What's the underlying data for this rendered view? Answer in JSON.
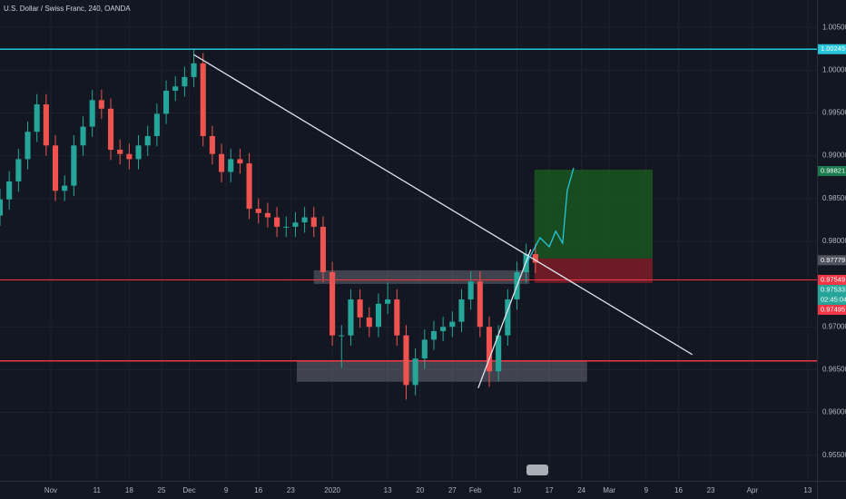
{
  "chart_data": {
    "type": "candlestick",
    "title": "U.S. Dollar / Swiss Franc, 240, OANDA",
    "up_color": "#26a69a",
    "down_color": "#ef5350",
    "x": [
      -11,
      -9,
      -7,
      -5,
      -3,
      -1,
      1,
      3,
      5,
      7,
      9,
      11,
      13,
      15,
      17,
      19,
      21,
      23,
      25,
      27,
      29,
      31,
      33,
      35,
      37,
      39,
      41,
      43,
      45,
      47,
      49,
      51,
      53,
      55,
      57,
      59,
      61,
      63,
      65,
      67,
      69,
      71,
      73,
      75,
      77,
      79,
      81,
      83,
      85,
      87,
      89,
      91,
      93,
      95,
      97,
      99,
      101,
      103,
      105
    ],
    "open": [
      0.983,
      0.9849,
      0.987,
      0.9896,
      0.9928,
      0.996,
      0.9912,
      0.9859,
      0.9865,
      0.9912,
      0.9934,
      0.9965,
      0.9955,
      0.9907,
      0.9902,
      0.9896,
      0.9912,
      0.9923,
      0.9949,
      0.9976,
      0.9981,
      0.9992,
      1.0008,
      0.9923,
      0.9902,
      0.9881,
      0.9896,
      0.9891,
      0.9838,
      0.9833,
      0.9828,
      0.9817,
      0.9817,
      0.9822,
      0.9828,
      0.9817,
      0.9764,
      0.969,
      0.969,
      0.9732,
      0.9711,
      0.97,
      0.9727,
      0.9732,
      0.969,
      0.9632,
      0.9663,
      0.9685,
      0.9695,
      0.97,
      0.9706,
      0.9732,
      0.9753,
      0.97,
      0.9648,
      0.969,
      0.9732,
      0.9764,
      0.9785
    ],
    "high": [
      0.9861,
      0.9882,
      0.9908,
      0.994,
      0.9972,
      0.9972,
      0.9924,
      0.9877,
      0.9924,
      0.9946,
      0.9977,
      0.9977,
      0.9967,
      0.9919,
      0.9914,
      0.9924,
      0.9935,
      0.9961,
      0.9988,
      0.9993,
      1.0004,
      1.0024,
      1.002,
      0.9935,
      0.9914,
      0.9908,
      0.9908,
      0.9903,
      0.985,
      0.9845,
      0.984,
      0.9829,
      0.9834,
      0.984,
      0.984,
      0.9829,
      0.9776,
      0.9702,
      0.9744,
      0.9744,
      0.9723,
      0.9739,
      0.9752,
      0.9744,
      0.9702,
      0.9675,
      0.9697,
      0.9707,
      0.9712,
      0.9718,
      0.9744,
      0.9765,
      0.9765,
      0.9712,
      0.9702,
      0.9744,
      0.9776,
      0.9797,
      0.9797
    ],
    "low": [
      0.9818,
      0.9837,
      0.9858,
      0.9884,
      0.9916,
      0.99,
      0.9847,
      0.9847,
      0.9853,
      0.99,
      0.9922,
      0.9943,
      0.9895,
      0.989,
      0.9884,
      0.9884,
      0.99,
      0.9911,
      0.9937,
      0.9964,
      0.9969,
      0.998,
      0.9911,
      0.989,
      0.9869,
      0.9869,
      0.9879,
      0.9826,
      0.9821,
      0.9816,
      0.9805,
      0.9805,
      0.9805,
      0.981,
      0.9805,
      0.9752,
      0.9678,
      0.9652,
      0.9678,
      0.9699,
      0.9688,
      0.9688,
      0.9715,
      0.9678,
      0.9615,
      0.962,
      0.9651,
      0.9673,
      0.9683,
      0.9688,
      0.9694,
      0.972,
      0.9688,
      0.963,
      0.9636,
      0.9678,
      0.972,
      0.9752,
      0.9763
    ],
    "close": [
      0.9849,
      0.987,
      0.9896,
      0.9928,
      0.996,
      0.9912,
      0.9859,
      0.9865,
      0.9912,
      0.9934,
      0.9965,
      0.9955,
      0.9907,
      0.9902,
      0.9896,
      0.9912,
      0.9923,
      0.9949,
      0.9976,
      0.9981,
      0.9992,
      1.0008,
      0.9923,
      0.9902,
      0.9881,
      0.9896,
      0.9891,
      0.9838,
      0.9833,
      0.9828,
      0.9817,
      0.9817,
      0.9822,
      0.9828,
      0.9817,
      0.9764,
      0.969,
      0.969,
      0.9732,
      0.9711,
      0.97,
      0.9727,
      0.9732,
      0.969,
      0.9632,
      0.9663,
      0.9685,
      0.9695,
      0.97,
      0.9706,
      0.9732,
      0.9753,
      0.97,
      0.9648,
      0.969,
      0.9732,
      0.9764,
      0.9785,
      0.9775
    ],
    "xlim": [
      -11,
      166
    ],
    "xticks": [
      {
        "value": 0,
        "label": "Nov"
      },
      {
        "value": 10,
        "label": "11"
      },
      {
        "value": 17,
        "label": "18"
      },
      {
        "value": 24,
        "label": "25"
      },
      {
        "value": 30,
        "label": "Dec"
      },
      {
        "value": 38,
        "label": "9"
      },
      {
        "value": 45,
        "label": "16"
      },
      {
        "value": 52,
        "label": "23"
      },
      {
        "value": 61,
        "label": "2020"
      },
      {
        "value": 73,
        "label": "13"
      },
      {
        "value": 80,
        "label": "20"
      },
      {
        "value": 87,
        "label": "27"
      },
      {
        "value": 92,
        "label": "Feb"
      },
      {
        "value": 101,
        "label": "10"
      },
      {
        "value": 108,
        "label": "17"
      },
      {
        "value": 115,
        "label": "24"
      },
      {
        "value": 121,
        "label": "Mar"
      },
      {
        "value": 129,
        "label": "9"
      },
      {
        "value": 136,
        "label": "16"
      },
      {
        "value": 143,
        "label": "23"
      },
      {
        "value": 152,
        "label": "Apr"
      },
      {
        "value": 164,
        "label": "13"
      }
    ],
    "ylim": [
      0.952,
      1.0082
    ],
    "yticks": [
      {
        "value": 1.005,
        "label": "1.00500"
      },
      {
        "value": 1.0,
        "label": "1.00000"
      },
      {
        "value": 0.995,
        "label": "0.99500"
      },
      {
        "value": 0.99,
        "label": "0.99000"
      },
      {
        "value": 0.985,
        "label": "0.98500"
      },
      {
        "value": 0.98,
        "label": "0.98000"
      },
      {
        "value": 0.97,
        "label": "0.97000"
      },
      {
        "value": 0.965,
        "label": "0.96500"
      },
      {
        "value": 0.96,
        "label": "0.96000"
      },
      {
        "value": 0.955,
        "label": "0.95500"
      }
    ],
    "grid": true,
    "hlines": [
      {
        "value": 1.00245,
        "color": "#26c6da"
      },
      {
        "value": 0.96603,
        "color": "#f23645"
      },
      {
        "value": 0.97549,
        "color": "#f23645"
      }
    ],
    "trendlines": [
      {
        "x": [
          31,
          139
        ],
        "values": [
          1.0018,
          0.96676
        ]
      },
      {
        "x": [
          92.6,
          104
        ],
        "values": [
          0.96284,
          0.97905
        ]
      }
    ],
    "zones": [
      {
        "x": [
          57,
          103.7
        ],
        "values": [
          0.97661,
          0.97502
        ]
      },
      {
        "x": [
          53.3,
          116.2
        ],
        "values": [
          0.96602,
          0.96358
        ]
      }
    ],
    "position": {
      "x": [
        104.8,
        130.4
      ],
      "target": 0.98837,
      "entry": 0.97799,
      "stop": 0.97513
    },
    "projection": {
      "x": [
        103.1,
        106,
        108,
        109.4,
        110.9,
        111.9,
        113.3
      ],
      "values": [
        0.97746,
        0.98042,
        0.97936,
        0.98117,
        0.97979,
        0.98593,
        0.98858
      ]
    },
    "badges": [
      {
        "value": 1.00245,
        "label": "1.00245",
        "color": "#26c6da"
      },
      {
        "value": 0.98821,
        "label": "0.98821",
        "color": "#1b7a4b"
      },
      {
        "value": 0.97779,
        "label": "0.97779",
        "color": "#50535e"
      },
      {
        "value": 0.97549,
        "label": "0.97549",
        "color": "#f23645"
      },
      {
        "value": 0.97533,
        "label": "0.97533",
        "color": "#26a69a"
      },
      {
        "value": 0.97495,
        "label": "0.97495",
        "color": "#f23645"
      }
    ],
    "countdown": "02:45:04"
  }
}
